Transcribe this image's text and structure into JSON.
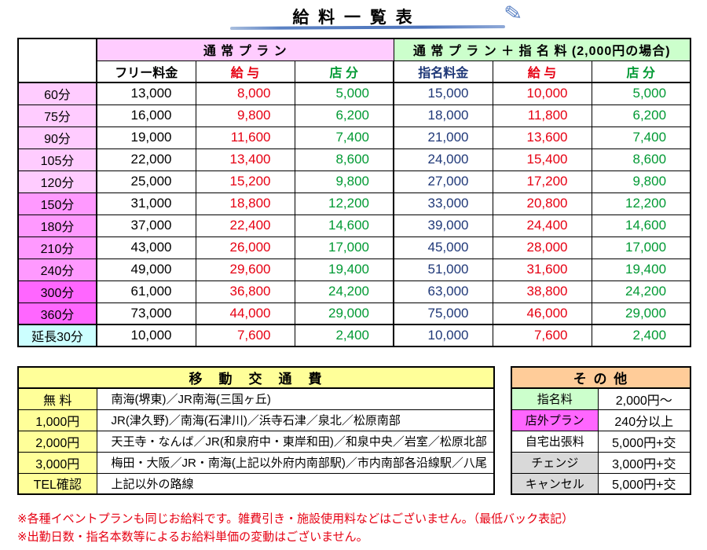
{
  "title": {
    "text": "給 料 一 覧 表",
    "pencil_icon": "✎"
  },
  "main_table": {
    "group_headers": [
      {
        "label": "通 常 プ ラ ン",
        "bg": "#FFCCFF"
      },
      {
        "label": "通 常 プ ラ ン ＋ 指 名 料 (2,000円の場合)",
        "bg": "#CCFFCC"
      }
    ],
    "col_headers": [
      {
        "label": "フリー料金",
        "color": "#000000"
      },
      {
        "label": "給 与",
        "color": "#E60012"
      },
      {
        "label": "店 分",
        "color": "#009933"
      },
      {
        "label": "指名料金",
        "color": "#1F3878"
      },
      {
        "label": "給 与",
        "color": "#E60012"
      },
      {
        "label": "店 分",
        "color": "#009933"
      }
    ],
    "value_colors": [
      "#000000",
      "#E60012",
      "#009933",
      "#1F3878",
      "#E60012",
      "#009933"
    ],
    "rows": [
      {
        "label": "60分",
        "label_bg": "#FFCCFF",
        "border_top": "solid",
        "values": [
          "13,000",
          "8,000",
          "5,000",
          "15,000",
          "10,000",
          "5,000"
        ]
      },
      {
        "label": "75分",
        "label_bg": "#FFCCFF",
        "border_top": "solid",
        "values": [
          "16,000",
          "9,800",
          "6,200",
          "18,000",
          "11,800",
          "6,200"
        ]
      },
      {
        "label": "90分",
        "label_bg": "#FFCCFF",
        "border_top": "dotted",
        "values": [
          "19,000",
          "11,600",
          "7,400",
          "21,000",
          "13,600",
          "7,400"
        ]
      },
      {
        "label": "105分",
        "label_bg": "#FFCCFF",
        "border_top": "solid",
        "values": [
          "22,000",
          "13,400",
          "8,600",
          "24,000",
          "15,400",
          "8,600"
        ]
      },
      {
        "label": "120分",
        "label_bg": "#FFCCFF",
        "border_top": "dotted",
        "values": [
          "25,000",
          "15,200",
          "9,800",
          "27,000",
          "17,200",
          "9,800"
        ]
      },
      {
        "label": "150分",
        "label_bg": "#FF99FF",
        "border_top": "solid",
        "values": [
          "31,000",
          "18,800",
          "12,200",
          "33,000",
          "20,800",
          "12,200"
        ]
      },
      {
        "label": "180分",
        "label_bg": "#FF99FF",
        "border_top": "solid",
        "values": [
          "37,000",
          "22,400",
          "14,600",
          "39,000",
          "24,400",
          "14,600"
        ]
      },
      {
        "label": "210分",
        "label_bg": "#FF99FF",
        "border_top": "solid",
        "values": [
          "43,000",
          "26,000",
          "17,000",
          "45,000",
          "28,000",
          "17,000"
        ]
      },
      {
        "label": "240分",
        "label_bg": "#FF99FF",
        "border_top": "solid",
        "values": [
          "49,000",
          "29,600",
          "19,400",
          "51,000",
          "31,600",
          "19,400"
        ]
      },
      {
        "label": "300分",
        "label_bg": "#FF66FF",
        "border_top": "solid",
        "values": [
          "61,000",
          "36,800",
          "24,200",
          "63,000",
          "38,800",
          "24,200"
        ]
      },
      {
        "label": "360分",
        "label_bg": "#FF66FF",
        "border_top": "solid",
        "values": [
          "73,000",
          "44,000",
          "29,000",
          "75,000",
          "46,000",
          "29,000"
        ]
      },
      {
        "label": "延長30分",
        "label_bg": "#CCFFFF",
        "border_top": "thick",
        "values": [
          "10,000",
          "7,600",
          "2,400",
          "10,000",
          "7,600",
          "2,400"
        ]
      }
    ]
  },
  "transport_table": {
    "header": "移　動　交　通　費",
    "header_bg": "#FFFF99",
    "rows": [
      {
        "label": "無 料",
        "route": "南海(堺東)／JR南海(三国ヶ丘)"
      },
      {
        "label": "1,000円",
        "route": "JR(津久野)／南海(石津川)／浜寺石津／泉北／松原南部"
      },
      {
        "label": "2,000円",
        "route": "天王寺・なんば／JR(和泉府中・東岸和田)／和泉中央／岩室／松原北部"
      },
      {
        "label": "3,000円",
        "route": "梅田・大阪／JR・南海(上記以外府内南部駅)／市内南部各沿線駅／八尾"
      },
      {
        "label": "TEL確認",
        "route": "上記以外の路線"
      }
    ]
  },
  "others_table": {
    "header": "そ の 他",
    "header_bg": "#FFCC99",
    "rows": [
      {
        "label": "指名料",
        "label_bg": "#CCFFCC",
        "value": "2,000円～"
      },
      {
        "label": "店外プラン",
        "label_bg": "#FF66FF",
        "value": "240分以上"
      },
      {
        "label": "自宅出張料",
        "label_bg": "#FFFFFF",
        "value": "5,000円+交"
      },
      {
        "label": "チェンジ",
        "label_bg": "#D9D9D9",
        "value": "3,000円+交"
      },
      {
        "label": "キャンセル",
        "label_bg": "#D9D9D9",
        "value": "5,000円+交"
      }
    ]
  },
  "notes": [
    "※各種イベントプランも同じお給料です。雑費引き・施設使用料などはございません。（最低バック表記）",
    "※出勤日数・指名本数等によるお給料単価の変動はございません。"
  ],
  "colors": {
    "underline_accent": "#5B82C4",
    "note_red": "#E60012"
  }
}
